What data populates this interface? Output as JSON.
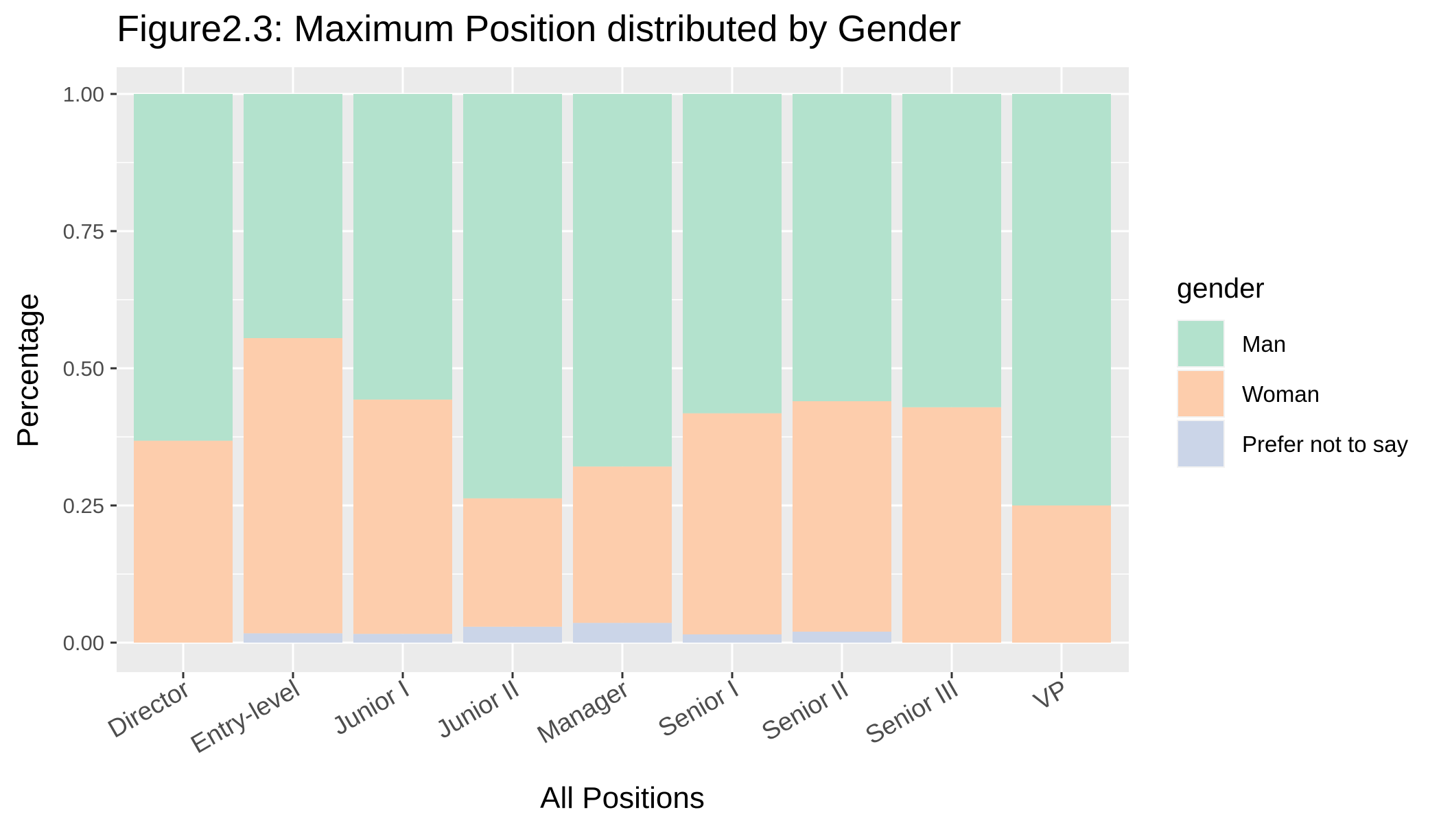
{
  "chart_data": {
    "type": "bar",
    "stacked": true,
    "title": "Figure2.3: Maximum Position distributed by Gender",
    "xlabel": "All Positions",
    "ylabel": "Percentage",
    "ylim": [
      0,
      1
    ],
    "yticks": [
      "0.00",
      "0.25",
      "0.50",
      "0.75",
      "1.00"
    ],
    "ytick_values": [
      0,
      0.25,
      0.5,
      0.75,
      1.0
    ],
    "categories": [
      "Director",
      "Entry-level",
      "Junior I",
      "Junior II",
      "Manager",
      "Senior I",
      "Senior II",
      "Senior III",
      "VP"
    ],
    "legend_title": "gender",
    "legend_position": "right",
    "grid": true,
    "series": [
      {
        "name": "Man",
        "color": "#b3e2cd",
        "values": [
          0.632,
          0.445,
          0.557,
          0.737,
          0.679,
          0.582,
          0.56,
          0.571,
          0.75
        ]
      },
      {
        "name": "Woman",
        "color": "#fdcdac",
        "values": [
          0.368,
          0.538,
          0.427,
          0.234,
          0.285,
          0.403,
          0.42,
          0.429,
          0.25
        ]
      },
      {
        "name": "Prefer not to say",
        "color": "#cbd5e8",
        "values": [
          0.0,
          0.017,
          0.016,
          0.029,
          0.036,
          0.015,
          0.02,
          0.0,
          0.0
        ]
      }
    ],
    "colors": {
      "panel_background": "#ebebeb",
      "grid_major": "#ffffff",
      "tick": "#333333"
    }
  }
}
